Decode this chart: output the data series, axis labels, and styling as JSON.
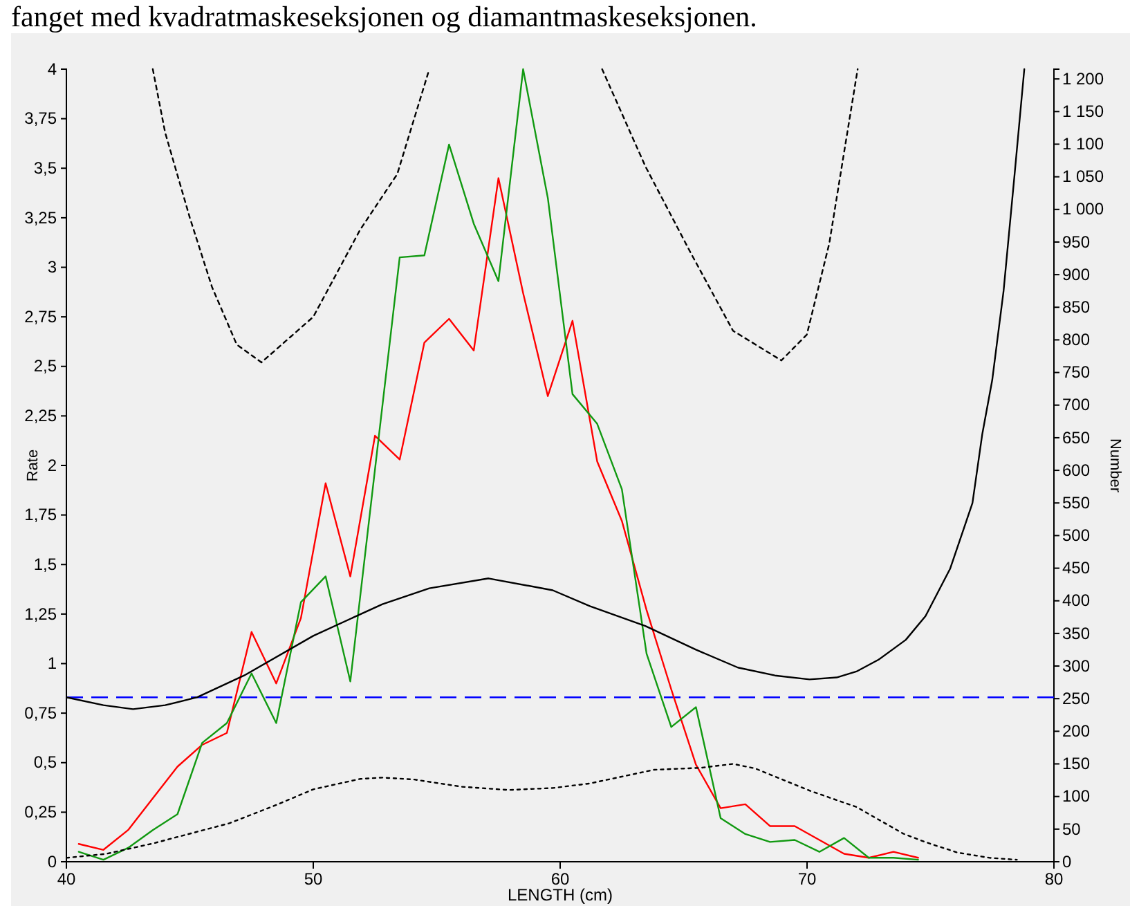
{
  "chart_data": {
    "type": "line",
    "xlabel": "LENGTH (cm)",
    "ylabel": "Rate",
    "y2label": "Number",
    "annotations": [
      "fanget med kvadratmaskeseksjonen og diamantmaskeseksjonen."
    ],
    "xlim": [
      40,
      80
    ],
    "xticks": [
      40,
      50,
      60,
      70,
      80
    ],
    "ylim": [
      0,
      4
    ],
    "yticks": [
      0,
      {
        "value": 0.25,
        "label": "0,25"
      },
      {
        "value": 0.5,
        "label": "0,5"
      },
      {
        "value": 0.75,
        "label": "0,75"
      },
      1,
      {
        "value": 1.25,
        "label": "1,25"
      },
      {
        "value": 1.5,
        "label": "1,5"
      },
      {
        "value": 1.75,
        "label": "1,75"
      },
      2,
      {
        "value": 2.25,
        "label": "2,25"
      },
      {
        "value": 2.5,
        "label": "2,5"
      },
      {
        "value": 2.75,
        "label": "2,75"
      },
      3,
      {
        "value": 3.25,
        "label": "3,25"
      },
      {
        "value": 3.5,
        "label": "3,5"
      },
      {
        "value": 3.75,
        "label": "3,75"
      },
      4
    ],
    "y2lim": [
      0,
      1215
    ],
    "y2ticks": [
      0,
      50,
      100,
      150,
      200,
      250,
      300,
      350,
      400,
      450,
      500,
      550,
      600,
      650,
      700,
      750,
      800,
      850,
      900,
      950,
      {
        "value": 1000,
        "label": "1 000"
      },
      {
        "value": 1050,
        "label": "1 050"
      },
      {
        "value": 1100,
        "label": "1 100"
      },
      {
        "value": 1150,
        "label": "1 150"
      },
      {
        "value": 1200,
        "label": "1 200"
      }
    ],
    "grid": false,
    "marker": "none",
    "ref_lines": [
      {
        "axis": "y",
        "value": 0.83,
        "color": "#0000ff",
        "line_style": "dashed"
      }
    ],
    "series": [
      {
        "color": "#ff0000",
        "line_style": "solid",
        "x": [
          40.5,
          41.5,
          42.5,
          43.5,
          44.5,
          45.5,
          46.5,
          47.5,
          48.5,
          49.5,
          50.5,
          51.5,
          52.5,
          53.5,
          54.5,
          55.5,
          56.5,
          57.5,
          58.5,
          59.5,
          60.5,
          61.5,
          62.5,
          63.5,
          64.5,
          65.5,
          66.5,
          67.5,
          68.5,
          69.5,
          70.5,
          71.5,
          72.5,
          73.5,
          74.5
        ],
        "values": [
          0.09,
          0.06,
          0.16,
          0.32,
          0.48,
          0.59,
          0.65,
          1.16,
          0.9,
          1.23,
          1.91,
          1.44,
          2.15,
          2.03,
          2.62,
          2.74,
          2.58,
          3.45,
          2.87,
          2.35,
          2.73,
          2.02,
          1.72,
          1.27,
          0.87,
          0.49,
          0.27,
          0.29,
          0.18,
          0.18,
          0.11,
          0.04,
          0.02,
          0.05,
          0.02
        ]
      },
      {
        "color": "#119911",
        "line_style": "solid",
        "x": [
          40.5,
          41.5,
          42.5,
          43.5,
          44.5,
          45.5,
          46.5,
          47.5,
          48.5,
          49.5,
          50.5,
          51.5,
          52.5,
          53.5,
          54.5,
          55.5,
          56.5,
          57.5,
          58.5,
          59.5,
          60.5,
          61.5,
          62.5,
          63.5,
          64.5,
          65.5,
          66.5,
          67.5,
          68.5,
          69.5,
          70.5,
          71.5,
          72.5,
          73.5,
          74.5
        ],
        "values": [
          0.05,
          0.01,
          0.07,
          0.16,
          0.24,
          0.6,
          0.7,
          0.95,
          0.7,
          1.31,
          1.44,
          0.91,
          1.98,
          3.05,
          3.06,
          3.62,
          3.22,
          2.93,
          4.0,
          3.35,
          2.36,
          2.21,
          1.88,
          1.05,
          0.68,
          0.78,
          0.22,
          0.14,
          0.1,
          0.11,
          0.05,
          0.12,
          0.02,
          0.02,
          0.01
        ]
      },
      {
        "color": "#000000",
        "line_style": "solid",
        "x": [
          40,
          41.5,
          42.7,
          44,
          45.3,
          47.2,
          50,
          52.8,
          54.7,
          57.1,
          59.7,
          61.2,
          63.45,
          65.5,
          67.2,
          68.7,
          70.1,
          71.2,
          72,
          72.9,
          74,
          74.8,
          75.8,
          76.7,
          77.1,
          77.5,
          77.96,
          78.4,
          78.8
        ],
        "values": [
          0.83,
          0.79,
          0.77,
          0.79,
          0.83,
          0.94,
          1.14,
          1.3,
          1.38,
          1.43,
          1.37,
          1.29,
          1.19,
          1.07,
          0.98,
          0.94,
          0.92,
          0.93,
          0.96,
          1.02,
          1.12,
          1.24,
          1.48,
          1.81,
          2.16,
          2.43,
          2.88,
          3.46,
          4.0
        ]
      },
      {
        "color": "#000000",
        "line_style": "dashed",
        "x": [
          43.5,
          44.0,
          45,
          45.9,
          46.9,
          47.9,
          50,
          51.9,
          53.4,
          54.7,
          58,
          61.7,
          63.45,
          65.3,
          67.0,
          68.96,
          69.99,
          70.9,
          71.5,
          72.05
        ],
        "values": [
          4.0,
          3.68,
          3.25,
          2.9,
          2.61,
          2.52,
          2.75,
          3.19,
          3.47,
          4.0,
          null,
          4.0,
          3.51,
          3.07,
          2.68,
          2.53,
          2.66,
          3.12,
          3.58,
          4.0
        ]
      },
      {
        "color": "#000000",
        "line_style": "dotted",
        "axis": "y2",
        "x": [
          40,
          41.6,
          43.5,
          46.6,
          48.5,
          50,
          51.9,
          52.8,
          54.1,
          56,
          57.9,
          59.7,
          61.2,
          63.8,
          65.7,
          67,
          67.9,
          70.1,
          72,
          73.9,
          74.8,
          76.1,
          77.4,
          78.5
        ],
        "values": [
          6,
          12,
          28,
          59,
          87,
          111,
          127,
          129,
          126,
          115,
          110,
          113,
          120,
          141,
          144,
          150,
          143,
          109,
          84,
          43,
          30,
          14,
          6,
          3
        ]
      }
    ]
  }
}
